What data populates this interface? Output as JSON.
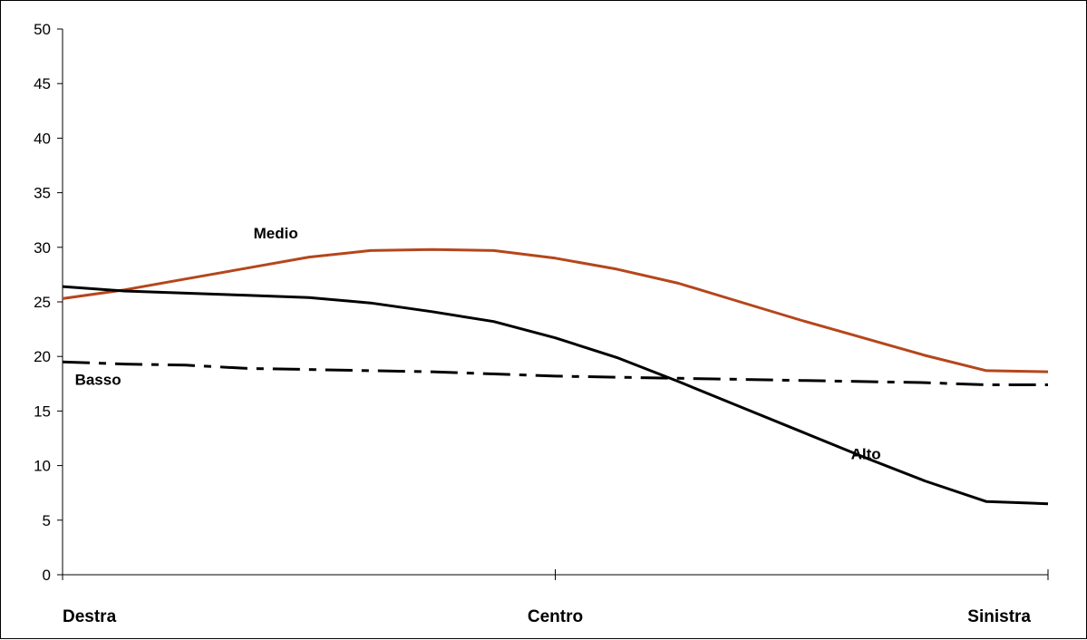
{
  "chart_data": {
    "type": "line",
    "title": "",
    "xlabel": "",
    "ylabel": "",
    "ylim": [
      0,
      50
    ],
    "yticks": [
      0,
      5,
      10,
      15,
      20,
      25,
      30,
      35,
      40,
      45,
      50
    ],
    "x": [
      0,
      1,
      2,
      3,
      4,
      5,
      6,
      7,
      8,
      9,
      10,
      11,
      12,
      13,
      14,
      15,
      16
    ],
    "xlim": [
      0,
      16
    ],
    "categories": [
      {
        "label": "Destra",
        "x": 0
      },
      {
        "label": "Centro",
        "x": 8
      },
      {
        "label": "Sinistra",
        "x": 16
      }
    ],
    "grid": false,
    "series": [
      {
        "name": "Medio",
        "color": "#b5461b",
        "dash": "solid",
        "values": [
          25.3,
          26.1,
          27.1,
          28.1,
          29.1,
          29.7,
          29.8,
          29.7,
          29.0,
          28.0,
          26.7,
          25.0,
          23.3,
          21.7,
          20.1,
          18.7,
          18.6
        ]
      },
      {
        "name": "Alto",
        "color": "#000000",
        "dash": "solid",
        "values": [
          26.4,
          26.0,
          25.8,
          25.6,
          25.4,
          24.9,
          24.1,
          23.2,
          21.7,
          19.9,
          17.7,
          15.4,
          13.1,
          10.8,
          8.6,
          6.7,
          6.5
        ]
      },
      {
        "name": "Basso",
        "color": "#000000",
        "dash": "dashdot",
        "values": [
          19.5,
          19.3,
          19.2,
          18.9,
          18.8,
          18.7,
          18.6,
          18.4,
          18.2,
          18.1,
          18.0,
          17.9,
          17.8,
          17.7,
          17.6,
          17.4,
          17.4
        ]
      }
    ],
    "annotations": [
      {
        "series": "Medio",
        "text": "Medio",
        "x": 3.1,
        "y": 30.8
      },
      {
        "series": "Basso",
        "text": "Basso",
        "x": 0.2,
        "y": 17.4
      },
      {
        "series": "Alto",
        "text": "Alto",
        "x": 12.8,
        "y": 10.6
      }
    ]
  }
}
